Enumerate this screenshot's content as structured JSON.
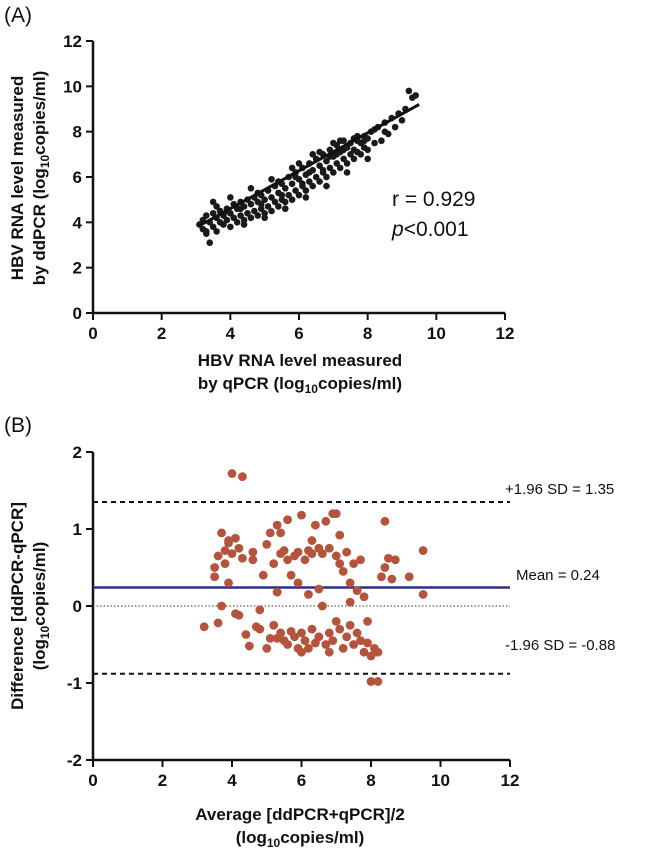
{
  "panel_labels": [
    "(A)",
    "(B)"
  ],
  "chart_data": [
    {
      "type": "scatter",
      "panel": "(A)",
      "xlabel_line1": "HBV RNA level measured",
      "xlabel_line2_pre": "by qPCR (log",
      "xlabel_line2_sub": "10",
      "xlabel_line2_post": "copies/ml)",
      "ylabel_line1": "HBV RNA level measured",
      "ylabel_line2_pre": "by ddPCR (log",
      "ylabel_line2_sub": "10",
      "ylabel_line2_post": "copies/ml)",
      "xlim": [
        0,
        12
      ],
      "ylim": [
        0,
        12
      ],
      "xticks": [
        0,
        2,
        4,
        6,
        8,
        10,
        12
      ],
      "yticks": [
        0,
        2,
        4,
        6,
        8,
        10,
        12
      ],
      "annotation_r": "r = 0.929",
      "annotation_p_italic": "p",
      "annotation_p_rest": "<0.001",
      "point_color": "#1a1a1a",
      "regression_line": {
        "x": [
          3.1,
          9.5
        ],
        "y": [
          3.85,
          9.2
        ]
      },
      "points": [
        [
          3.1,
          3.9
        ],
        [
          3.2,
          4.1
        ],
        [
          3.2,
          3.7
        ],
        [
          3.3,
          4.3
        ],
        [
          3.3,
          3.5
        ],
        [
          3.4,
          4.0
        ],
        [
          3.4,
          3.1
        ],
        [
          3.5,
          4.4
        ],
        [
          3.5,
          3.8
        ],
        [
          3.6,
          4.2
        ],
        [
          3.6,
          3.6
        ],
        [
          3.7,
          4.5
        ],
        [
          3.7,
          4.0
        ],
        [
          3.8,
          3.9
        ],
        [
          3.8,
          4.3
        ],
        [
          3.9,
          4.6
        ],
        [
          3.9,
          4.1
        ],
        [
          4.0,
          4.4
        ],
        [
          4.0,
          3.8
        ],
        [
          4.1,
          4.8
        ],
        [
          4.1,
          4.2
        ],
        [
          4.2,
          4.0
        ],
        [
          4.2,
          4.6
        ],
        [
          4.3,
          4.9
        ],
        [
          4.3,
          4.3
        ],
        [
          4.4,
          4.1
        ],
        [
          4.4,
          4.7
        ],
        [
          4.5,
          5.0
        ],
        [
          4.5,
          4.4
        ],
        [
          4.6,
          4.2
        ],
        [
          4.6,
          4.8
        ],
        [
          4.7,
          5.1
        ],
        [
          4.7,
          4.5
        ],
        [
          4.8,
          4.3
        ],
        [
          4.8,
          4.9
        ],
        [
          4.9,
          5.2
        ],
        [
          4.9,
          4.6
        ],
        [
          5.0,
          4.4
        ],
        [
          5.0,
          5.0
        ],
        [
          5.1,
          5.4
        ],
        [
          5.1,
          4.7
        ],
        [
          5.2,
          4.5
        ],
        [
          5.2,
          5.1
        ],
        [
          5.3,
          5.6
        ],
        [
          5.3,
          4.9
        ],
        [
          5.4,
          4.7
        ],
        [
          5.4,
          5.3
        ],
        [
          5.5,
          5.7
        ],
        [
          5.5,
          5.0
        ],
        [
          5.6,
          4.9
        ],
        [
          5.6,
          5.5
        ],
        [
          5.7,
          6.0
        ],
        [
          5.7,
          5.2
        ],
        [
          5.8,
          5.0
        ],
        [
          5.8,
          5.7
        ],
        [
          5.9,
          6.2
        ],
        [
          5.9,
          5.4
        ],
        [
          6.0,
          5.2
        ],
        [
          6.0,
          5.9
        ],
        [
          6.1,
          6.4
        ],
        [
          6.1,
          5.6
        ],
        [
          6.2,
          5.4
        ],
        [
          6.2,
          6.1
        ],
        [
          6.3,
          6.6
        ],
        [
          6.3,
          5.8
        ],
        [
          6.4,
          5.6
        ],
        [
          6.4,
          6.3
        ],
        [
          6.5,
          6.8
        ],
        [
          6.5,
          6.0
        ],
        [
          6.6,
          5.8
        ],
        [
          6.6,
          6.5
        ],
        [
          6.7,
          7.0
        ],
        [
          6.7,
          6.2
        ],
        [
          6.8,
          6.0
        ],
        [
          6.8,
          6.7
        ],
        [
          6.9,
          7.2
        ],
        [
          6.9,
          6.4
        ],
        [
          7.0,
          6.2
        ],
        [
          7.0,
          6.9
        ],
        [
          7.1,
          7.4
        ],
        [
          7.1,
          6.6
        ],
        [
          7.2,
          6.4
        ],
        [
          7.2,
          7.1
        ],
        [
          7.3,
          7.6
        ],
        [
          7.3,
          6.8
        ],
        [
          7.4,
          6.6
        ],
        [
          7.4,
          7.3
        ],
        [
          7.5,
          7.5
        ],
        [
          7.5,
          7.0
        ],
        [
          7.6,
          6.8
        ],
        [
          7.6,
          7.2
        ],
        [
          7.7,
          7.6
        ],
        [
          7.7,
          7.1
        ],
        [
          7.8,
          7.0
        ],
        [
          7.8,
          7.5
        ],
        [
          7.9,
          7.8
        ],
        [
          7.9,
          7.3
        ],
        [
          8.0,
          7.2
        ],
        [
          8.0,
          7.7
        ],
        [
          8.1,
          8.0
        ],
        [
          8.2,
          7.5
        ],
        [
          8.3,
          8.2
        ],
        [
          8.4,
          7.6
        ],
        [
          8.5,
          8.4
        ],
        [
          8.6,
          7.9
        ],
        [
          8.7,
          8.6
        ],
        [
          8.8,
          8.2
        ],
        [
          8.9,
          8.8
        ],
        [
          9.0,
          8.5
        ],
        [
          9.1,
          9.0
        ],
        [
          9.2,
          9.8
        ],
        [
          9.3,
          9.5
        ],
        [
          9.4,
          9.6
        ],
        [
          3.6,
          4.7
        ],
        [
          4.0,
          5.1
        ],
        [
          4.6,
          5.5
        ],
        [
          5.2,
          5.9
        ],
        [
          5.8,
          6.4
        ],
        [
          6.4,
          7.0
        ],
        [
          7.0,
          7.5
        ],
        [
          7.6,
          7.7
        ],
        [
          4.4,
          3.9
        ],
        [
          5.0,
          4.2
        ],
        [
          5.6,
          4.6
        ],
        [
          6.2,
          5.1
        ],
        [
          6.8,
          5.6
        ],
        [
          7.4,
          6.2
        ],
        [
          8.0,
          6.8
        ],
        [
          3.5,
          4.9
        ],
        [
          6.0,
          6.6
        ],
        [
          6.6,
          7.1
        ],
        [
          7.2,
          7.6
        ],
        [
          5.4,
          5.8
        ],
        [
          4.8,
          5.3
        ],
        [
          3.9,
          4.5
        ],
        [
          4.3,
          4.6
        ],
        [
          6.9,
          6.9
        ],
        [
          7.7,
          7.8
        ],
        [
          8.2,
          8.1
        ],
        [
          8.5,
          8.0
        ],
        [
          5.5,
          5.2
        ],
        [
          6.1,
          5.7
        ],
        [
          6.7,
          6.3
        ],
        [
          7.3,
          7.2
        ],
        [
          4.9,
          4.8
        ],
        [
          3.3,
          3.6
        ],
        [
          5.9,
          6.0
        ],
        [
          6.3,
          6.2
        ],
        [
          7.1,
          7.0
        ],
        [
          7.9,
          7.6
        ]
      ]
    },
    {
      "type": "scatter",
      "panel": "(B)",
      "xlabel_line1": "Average [ddPCR+qPCR]/2",
      "xlabel_line2_pre": "(log",
      "xlabel_line2_sub": "10",
      "xlabel_line2_post": "copies/ml)",
      "ylabel_line1": "Difference [ddPCR-qPCR]",
      "ylabel_line2_pre": "(log",
      "ylabel_line2_sub": "10",
      "ylabel_line2_post": "copies/ml)",
      "xlim": [
        0,
        12
      ],
      "ylim": [
        -2,
        2
      ],
      "xticks": [
        0,
        2,
        4,
        6,
        8,
        10,
        12
      ],
      "yticks": [
        -2,
        -1,
        0,
        1,
        2
      ],
      "mean": 0.24,
      "upper_loa": 1.35,
      "lower_loa": -0.88,
      "mean_label": "Mean = 0.24",
      "upper_label": "+1.96 SD = 1.35",
      "lower_label": "-1.96 SD = -0.88",
      "point_color": "#b5533c",
      "mean_line_color": "#2e2e8a",
      "points": [
        [
          3.2,
          -0.27
        ],
        [
          3.5,
          0.38
        ],
        [
          3.5,
          0.5
        ],
        [
          3.6,
          0.65
        ],
        [
          3.6,
          -0.22
        ],
        [
          3.7,
          0.0
        ],
        [
          3.7,
          0.95
        ],
        [
          3.8,
          0.72
        ],
        [
          3.8,
          0.55
        ],
        [
          3.9,
          0.82
        ],
        [
          3.9,
          0.3
        ],
        [
          4.0,
          1.72
        ],
        [
          4.0,
          0.68
        ],
        [
          4.1,
          0.88
        ],
        [
          4.1,
          -0.1
        ],
        [
          4.2,
          0.75
        ],
        [
          4.2,
          -0.12
        ],
        [
          4.3,
          1.68
        ],
        [
          4.3,
          0.62
        ],
        [
          4.4,
          -0.37
        ],
        [
          4.5,
          -0.52
        ],
        [
          4.6,
          0.7
        ],
        [
          4.7,
          -0.27
        ],
        [
          4.8,
          -0.05
        ],
        [
          4.9,
          0.4
        ],
        [
          5.0,
          -0.55
        ],
        [
          5.0,
          0.8
        ],
        [
          5.1,
          0.95
        ],
        [
          5.1,
          -0.42
        ],
        [
          5.2,
          0.55
        ],
        [
          5.2,
          -0.25
        ],
        [
          5.3,
          1.05
        ],
        [
          5.3,
          0.18
        ],
        [
          5.4,
          0.68
        ],
        [
          5.4,
          -0.35
        ],
        [
          5.5,
          -0.45
        ],
        [
          5.5,
          0.72
        ],
        [
          5.6,
          1.12
        ],
        [
          5.6,
          -0.5
        ],
        [
          5.7,
          0.4
        ],
        [
          5.7,
          -0.33
        ],
        [
          5.8,
          0.65
        ],
        [
          5.8,
          -0.4
        ],
        [
          5.9,
          0.7
        ],
        [
          5.9,
          -0.55
        ],
        [
          6.0,
          1.18
        ],
        [
          6.0,
          -0.35
        ],
        [
          6.1,
          0.6
        ],
        [
          6.1,
          -0.45
        ],
        [
          6.2,
          0.72
        ],
        [
          6.2,
          -0.55
        ],
        [
          6.3,
          0.68
        ],
        [
          6.3,
          -0.3
        ],
        [
          6.4,
          1.05
        ],
        [
          6.4,
          -0.48
        ],
        [
          6.5,
          0.22
        ],
        [
          6.5,
          -0.4
        ],
        [
          6.6,
          0.68
        ],
        [
          6.6,
          0.0
        ],
        [
          6.7,
          1.1
        ],
        [
          6.7,
          -0.5
        ],
        [
          6.8,
          0.75
        ],
        [
          6.8,
          -0.6
        ],
        [
          6.9,
          1.2
        ],
        [
          6.9,
          -0.45
        ],
        [
          7.0,
          0.65
        ],
        [
          7.0,
          -0.2
        ],
        [
          7.1,
          -0.3
        ],
        [
          7.1,
          0.92
        ],
        [
          7.2,
          -0.55
        ],
        [
          7.2,
          0.45
        ],
        [
          7.3,
          -0.4
        ],
        [
          7.3,
          0.7
        ],
        [
          7.4,
          -0.25
        ],
        [
          7.4,
          0.3
        ],
        [
          7.5,
          -0.5
        ],
        [
          7.5,
          0.55
        ],
        [
          7.6,
          -0.35
        ],
        [
          7.6,
          0.2
        ],
        [
          7.7,
          -0.45
        ],
        [
          7.7,
          0.6
        ],
        [
          7.8,
          0.12
        ],
        [
          7.8,
          -0.6
        ],
        [
          7.9,
          -0.2
        ],
        [
          8.0,
          -0.65
        ],
        [
          8.0,
          -0.98
        ],
        [
          8.1,
          -0.55
        ],
        [
          8.2,
          -0.98
        ],
        [
          8.3,
          0.38
        ],
        [
          8.4,
          1.1
        ],
        [
          8.4,
          0.5
        ],
        [
          8.5,
          0.62
        ],
        [
          8.6,
          0.35
        ],
        [
          8.7,
          0.6
        ],
        [
          9.1,
          0.38
        ],
        [
          9.5,
          0.72
        ],
        [
          9.5,
          0.15
        ],
        [
          3.9,
          0.85
        ],
        [
          4.6,
          0.6
        ],
        [
          5.4,
          0.95
        ],
        [
          5.9,
          0.3
        ],
        [
          6.2,
          0.15
        ],
        [
          6.5,
          0.75
        ],
        [
          7.0,
          1.2
        ],
        [
          7.4,
          0.05
        ],
        [
          6.0,
          -0.6
        ],
        [
          6.8,
          -0.35
        ],
        [
          5.3,
          -0.42
        ],
        [
          4.8,
          -0.3
        ],
        [
          5.6,
          0.6
        ],
        [
          6.3,
          0.85
        ],
        [
          7.1,
          0.55
        ],
        [
          7.9,
          -0.48
        ],
        [
          8.2,
          -0.6
        ]
      ]
    }
  ]
}
